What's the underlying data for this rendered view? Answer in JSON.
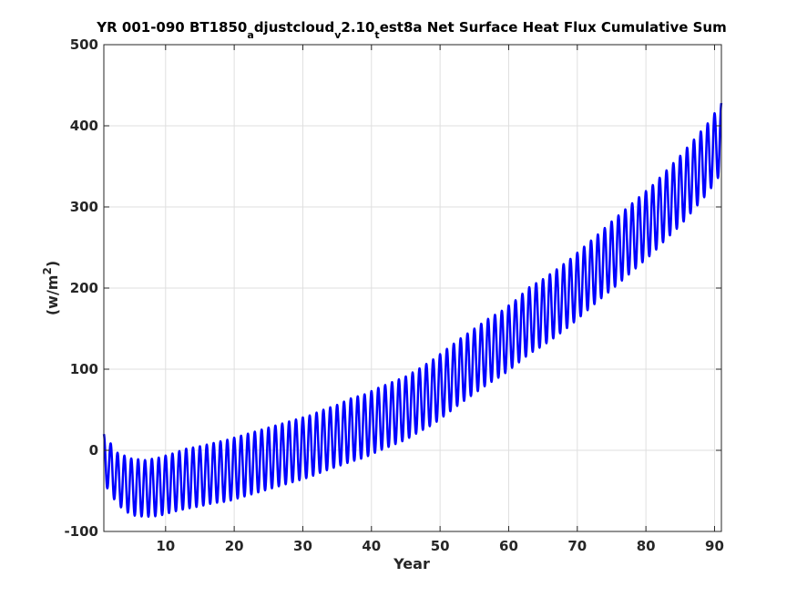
{
  "chart_data": {
    "type": "line",
    "title_segments": [
      {
        "text": "YR 001-090 BT1850",
        "sub": false
      },
      {
        "text": "a",
        "sub": true
      },
      {
        "text": "djustcloud",
        "sub": false
      },
      {
        "text": "v",
        "sub": true
      },
      {
        "text": "2.10",
        "sub": false
      },
      {
        "text": "t",
        "sub": true
      },
      {
        "text": "est8a Net Surface Heat Flux  Cumulative Sum",
        "sub": false
      }
    ],
    "xlabel": "Year",
    "ylabel": "(w/m²)",
    "ylabel_segments": [
      {
        "text": "(w/m",
        "sup": false
      },
      {
        "text": "2",
        "sup": true
      },
      {
        "text": ")",
        "sup": false
      }
    ],
    "xlim": [
      1,
      91
    ],
    "ylim": [
      -100,
      500
    ],
    "xticks": [
      10,
      20,
      30,
      40,
      50,
      60,
      70,
      80,
      90
    ],
    "yticks": [
      -100,
      0,
      100,
      200,
      300,
      400,
      500
    ],
    "grid": true,
    "line_color": "#0000ff",
    "series": [
      {
        "x": [
          1,
          3,
          5,
          7,
          9,
          11,
          13,
          15,
          17,
          19,
          21,
          23,
          25,
          27,
          29,
          31,
          33,
          35,
          37,
          39,
          41,
          43,
          45,
          47,
          49,
          51,
          53,
          55,
          57,
          59,
          61,
          63,
          65,
          67,
          69,
          71,
          73,
          75,
          77,
          79,
          81,
          83,
          85,
          87,
          89,
          91
        ],
        "values": [
          -10,
          -35,
          -45,
          -47,
          -45,
          -40,
          -35,
          -32,
          -28,
          -25,
          -20,
          -15,
          -10,
          -5,
          0,
          5,
          12,
          18,
          25,
          30,
          38,
          45,
          52,
          62,
          72,
          85,
          98,
          110,
          122,
          132,
          145,
          160,
          170,
          182,
          195,
          210,
          225,
          240,
          255,
          270,
          285,
          303,
          320,
          340,
          360,
          385
        ],
        "seasonal_amplitude": [
          30,
          32,
          35,
          35,
          36,
          36,
          37,
          37,
          37,
          38,
          38,
          38,
          38,
          38,
          38,
          38,
          38,
          38,
          39,
          39,
          39,
          39,
          39,
          39,
          40,
          40,
          40,
          40,
          40,
          40,
          40,
          41,
          41,
          41,
          41,
          41,
          41,
          42,
          42,
          42,
          42,
          42,
          43,
          43,
          43,
          43
        ]
      }
    ]
  }
}
